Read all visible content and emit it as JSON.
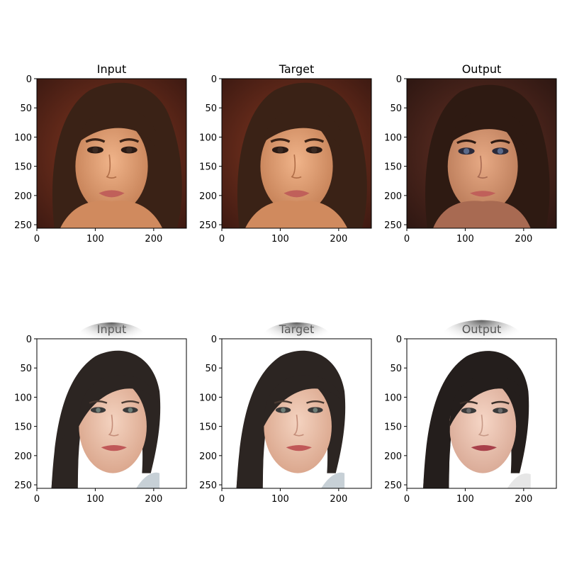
{
  "figure": {
    "panels": [
      {
        "title": "Input",
        "image": "portrait-1-input"
      },
      {
        "title": "Target",
        "image": "portrait-1-target"
      },
      {
        "title": "Output",
        "image": "portrait-1-output"
      },
      {
        "title": "Input",
        "image": "portrait-2-input"
      },
      {
        "title": "Target",
        "image": "portrait-2-target"
      },
      {
        "title": "Output",
        "image": "portrait-2-output"
      }
    ],
    "x_ticks": [
      "0",
      "100",
      "200"
    ],
    "y_ticks": [
      "0",
      "50",
      "100",
      "150",
      "200",
      "250"
    ],
    "tick_values_x": [
      0,
      100,
      200
    ],
    "tick_values_y": [
      0,
      50,
      100,
      150,
      200,
      250
    ],
    "image_extent": [
      0,
      256
    ]
  }
}
